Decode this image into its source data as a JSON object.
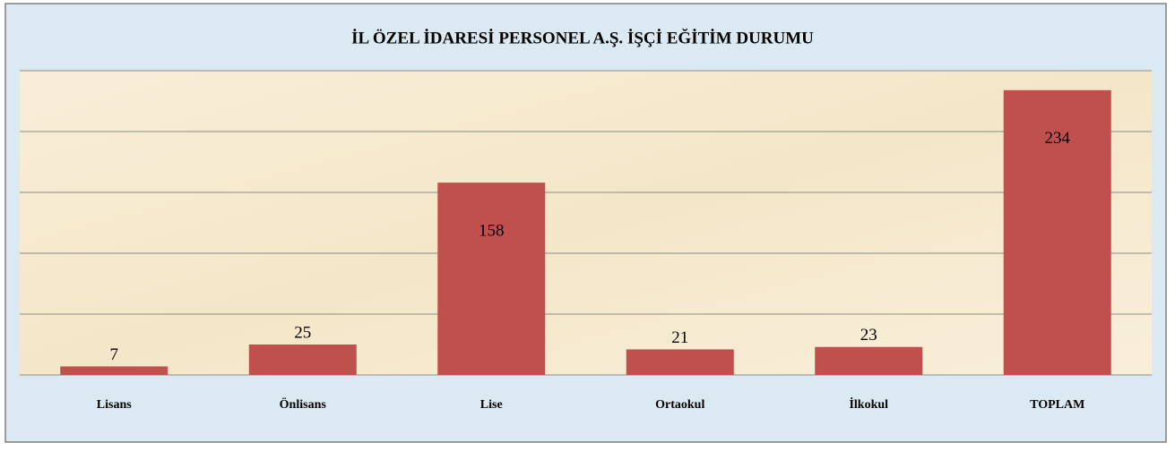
{
  "chart_data": {
    "type": "bar",
    "title": "İL ÖZEL İDARESİ PERSONEL A.Ş. İŞÇİ EĞİTİM DURUMU",
    "categories": [
      "Lisans",
      "Önlisans",
      "Lise",
      "Ortaokul",
      "İlkokul",
      "TOPLAM"
    ],
    "values": [
      7,
      25,
      158,
      21,
      23,
      234
    ],
    "color": "#c0504d",
    "ylim": [
      0,
      250
    ],
    "yticks": [
      0,
      50,
      100,
      150,
      200,
      250
    ],
    "grid": true
  }
}
